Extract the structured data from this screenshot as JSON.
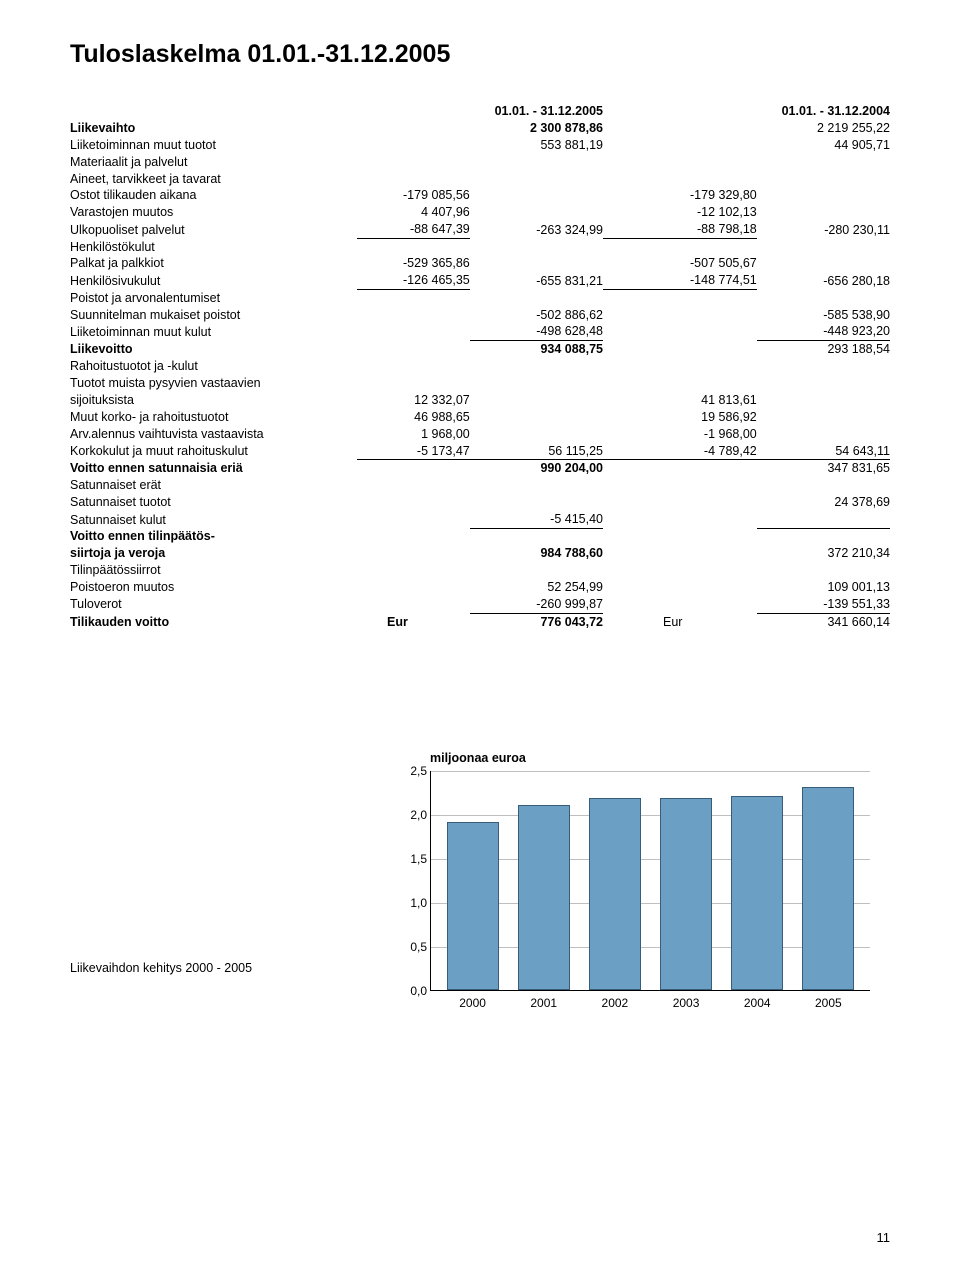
{
  "title": "Tuloslaskelma  01.01.-31.12.2005",
  "periods": {
    "current": "01.01. - 31.12.2005",
    "prior": "01.01. - 31.12.2004"
  },
  "lines": {
    "liikevaihto": {
      "label": "Liikevaihto",
      "c2": "2 300 878,86",
      "c4": "2 219 255,22"
    },
    "muuttuotot": {
      "label": "Liiketoiminnan muut tuotot",
      "c2": "553 881,19",
      "c4": "44 905,71"
    },
    "materiaalit": {
      "label": "Materiaalit ja palvelut"
    },
    "aineet": {
      "label": "Aineet, tarvikkeet ja tavarat"
    },
    "ostot": {
      "label": "Ostot tilikauden aikana",
      "c1": "-179 085,56",
      "c3": "-179 329,80"
    },
    "varasto": {
      "label": "Varastojen muutos",
      "c1": "4 407,96",
      "c3": "-12 102,13"
    },
    "ulkop": {
      "label": "Ulkopuoliset palvelut",
      "c1": "-88 647,39",
      "c2": "-263 324,99",
      "c3": "-88 798,18",
      "c4": "-280 230,11"
    },
    "hkulut": {
      "label": "Henkilöstökulut"
    },
    "palkat": {
      "label": "Palkat ja palkkiot",
      "c1": "-529 365,86",
      "c3": "-507 505,67"
    },
    "sivuk": {
      "label": "Henkilösivukulut",
      "c1": "-126 465,35",
      "c2": "-655 831,21",
      "c3": "-148 774,51",
      "c4": "-656 280,18"
    },
    "poistot": {
      "label": "Poistot ja arvonalentumiset"
    },
    "suunn": {
      "label": "Suunnitelman mukaiset poistot",
      "c2": "-502 886,62",
      "c4": "-585 538,90"
    },
    "muutk": {
      "label": "Liiketoiminnan muut kulut",
      "c2": "-498 628,48",
      "c4": "-448 923,20"
    },
    "liikev": {
      "label": "Liikevoitto",
      "c2": "934 088,75",
      "c4": "293 188,54"
    },
    "rahoot": {
      "label": "Rahoitustuotot ja -kulut"
    },
    "tuototp": {
      "label": "Tuotot muista pysyvien vastaavien"
    },
    "sijoit": {
      "label": "sijoituksista",
      "c1": "12 332,07",
      "c3": "41 813,61"
    },
    "korko": {
      "label": "Muut korko- ja rahoitustuotot",
      "c1": "46 988,65",
      "c3": "19 586,92"
    },
    "arval": {
      "label": "Arv.alennus vaihtuvista vastaavista",
      "c1": "1 968,00",
      "c3": "-1 968,00"
    },
    "korkok": {
      "label": "Korkokulut ja muut rahoituskulut",
      "c1": "-5 173,47",
      "c2": "56 115,25",
      "c3": "-4 789,42",
      "c4": "54 643,11"
    },
    "vese": {
      "label": "Voitto ennen satunnaisia eriä",
      "c2": "990 204,00",
      "c4": "347 831,65"
    },
    "saterat": {
      "label": "Satunnaiset erät"
    },
    "sattuot": {
      "label": "Satunnaiset tuotot",
      "c4": "24 378,69"
    },
    "satkul": {
      "label": "Satunnaiset kulut",
      "c2": "-5 415,40"
    },
    "vetp1": {
      "label": "Voitto ennen tilinpäätös-"
    },
    "vetp2": {
      "label": "siirtoja ja veroja",
      "c2": "984 788,60",
      "c4": "372 210,34"
    },
    "tps": {
      "label": "Tilinpäätössiirrot"
    },
    "poistoero": {
      "label": "Poistoeron muutos",
      "c2": "52 254,99",
      "c4": "109 001,13"
    },
    "tuloverot": {
      "label": "Tuloverot",
      "c2": "-260 999,87",
      "c4": "-139 551,33"
    },
    "tkvoitto": {
      "label": "Tilikauden voitto",
      "c1": "Eur",
      "c2": "776 043,72",
      "c3": "Eur",
      "c4": "341 660,14"
    }
  },
  "chart": {
    "title": "miljoonaa euroa",
    "caption": "Liikevaihdon kehitys 2000 - 2005",
    "ymax": 2.5,
    "yticks": [
      "0,0",
      "0,5",
      "1,0",
      "1,5",
      "2,0",
      "2,5"
    ],
    "categories": [
      "2000",
      "2001",
      "2002",
      "2003",
      "2004",
      "2005"
    ],
    "values": [
      1.9,
      2.1,
      2.18,
      2.18,
      2.2,
      2.3
    ],
    "bar_fill": "#6b9fc4",
    "bar_border": "#385d7a",
    "grid_color": "#bfbfbf",
    "bg": "#ffffff"
  },
  "pagenum": "11"
}
